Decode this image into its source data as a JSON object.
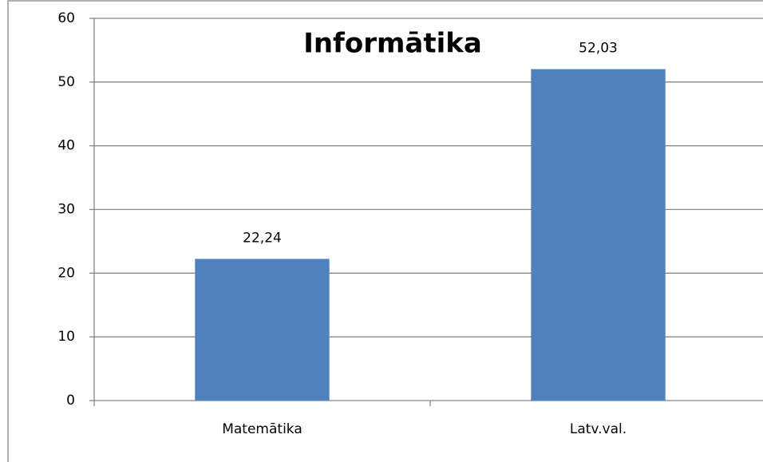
{
  "chart_data": {
    "type": "bar",
    "title": "Informātika",
    "categories": [
      "Matemātika",
      "Latv.val."
    ],
    "values": [
      22.24,
      52.03
    ],
    "value_labels": [
      "22,24",
      "52,03"
    ],
    "color": "#4f81bd",
    "ylim": [
      0,
      60
    ],
    "yticks": [
      0,
      10,
      20,
      30,
      40,
      50,
      60
    ],
    "grid": true
  }
}
